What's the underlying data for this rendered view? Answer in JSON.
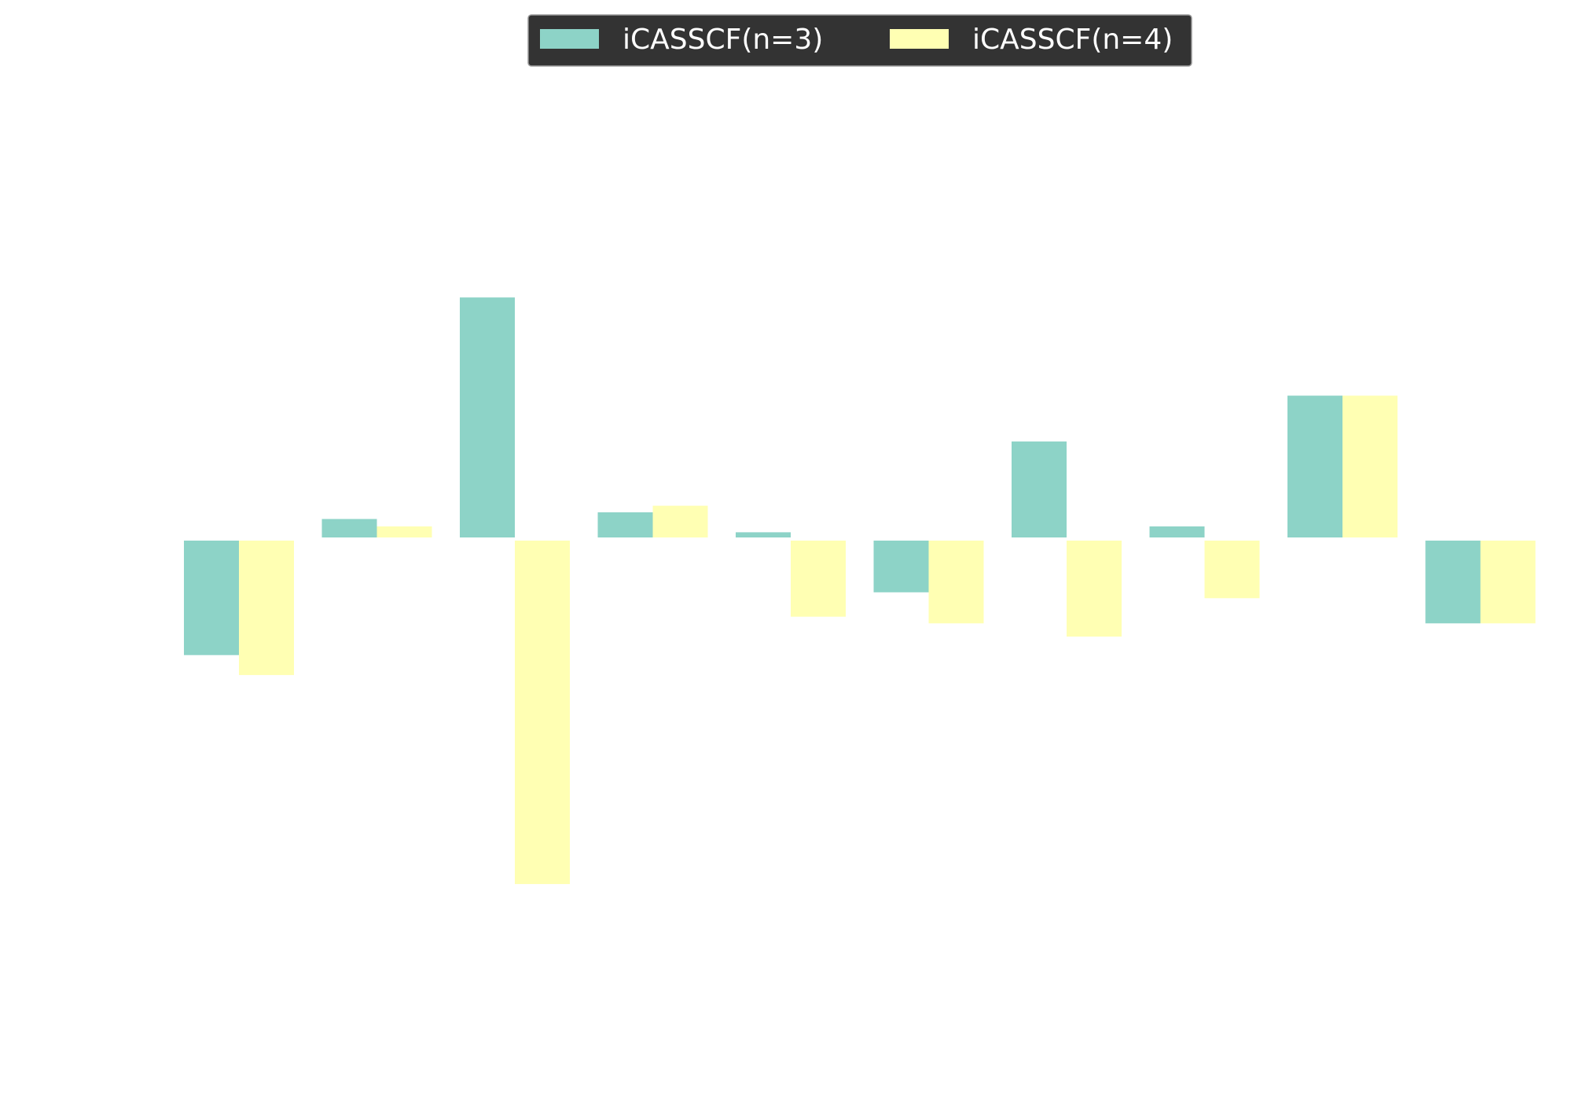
{
  "chart_data": {
    "type": "bar",
    "title": "",
    "xlabel": "",
    "ylabel": "",
    "axes_visible": false,
    "grid": false,
    "legend": {
      "placement": "top-center",
      "background": "#333333",
      "text_color": "#ffffff"
    },
    "ylim": [
      -7.0,
      5.5
    ],
    "categories": [
      "",
      "",
      "",
      "",
      "",
      "",
      "",
      "",
      "",
      ""
    ],
    "series": [
      {
        "name": "iCASSCF(n=3)",
        "color": "#8dd3c7",
        "values": [
          -1.55,
          0.25,
          3.25,
          0.34,
          0.07,
          -0.7,
          1.3,
          0.15,
          1.92,
          -1.12
        ]
      },
      {
        "name": "iCASSCF(n=4)",
        "color": "#ffffb3",
        "values": [
          -1.82,
          0.15,
          -4.65,
          0.43,
          -1.03,
          -1.12,
          -1.3,
          -0.78,
          1.92,
          -1.12
        ]
      }
    ]
  }
}
